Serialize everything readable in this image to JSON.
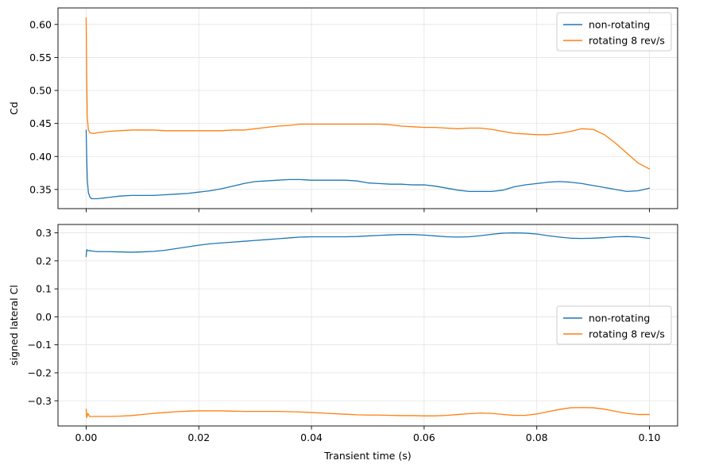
{
  "chart_data": [
    {
      "type": "line",
      "title": "",
      "xlabel": "",
      "ylabel": "Cd",
      "xlim": [
        -0.005,
        0.105
      ],
      "ylim": [
        0.321,
        0.625
      ],
      "xticks": [
        0.0,
        0.02,
        0.04,
        0.06,
        0.08,
        0.1
      ],
      "xtick_labels": [],
      "yticks": [
        0.35,
        0.4,
        0.45,
        0.5,
        0.55,
        0.6
      ],
      "ytick_labels": [
        "0.35",
        "0.40",
        "0.45",
        "0.50",
        "0.55",
        "0.60"
      ],
      "grid": true,
      "legend_position": "upper right",
      "colors": {
        "non-rotating": "#1f77b4",
        "rotating 8 rev/s": "#ff7f0e"
      },
      "series": [
        {
          "name": "non-rotating",
          "x": [
            0.0,
            0.0001,
            0.0002,
            0.0004,
            0.0007,
            0.001,
            0.0015,
            0.002,
            0.003,
            0.004,
            0.006,
            0.008,
            0.01,
            0.012,
            0.014,
            0.016,
            0.018,
            0.02,
            0.022,
            0.024,
            0.026,
            0.028,
            0.03,
            0.032,
            0.034,
            0.036,
            0.038,
            0.04,
            0.042,
            0.044,
            0.046,
            0.048,
            0.05,
            0.052,
            0.054,
            0.056,
            0.058,
            0.06,
            0.062,
            0.064,
            0.066,
            0.068,
            0.07,
            0.072,
            0.074,
            0.076,
            0.078,
            0.08,
            0.082,
            0.084,
            0.086,
            0.088,
            0.09,
            0.092,
            0.094,
            0.096,
            0.098,
            0.1
          ],
          "y": [
            0.44,
            0.4,
            0.365,
            0.345,
            0.338,
            0.336,
            0.336,
            0.336,
            0.337,
            0.338,
            0.34,
            0.341,
            0.341,
            0.341,
            0.342,
            0.343,
            0.344,
            0.346,
            0.348,
            0.351,
            0.355,
            0.359,
            0.362,
            0.363,
            0.364,
            0.365,
            0.365,
            0.364,
            0.364,
            0.364,
            0.364,
            0.363,
            0.36,
            0.359,
            0.358,
            0.358,
            0.357,
            0.357,
            0.355,
            0.352,
            0.349,
            0.347,
            0.347,
            0.347,
            0.349,
            0.354,
            0.357,
            0.359,
            0.361,
            0.362,
            0.361,
            0.359,
            0.356,
            0.353,
            0.35,
            0.347,
            0.348,
            0.352
          ]
        },
        {
          "name": "rotating 8 rev/s",
          "x": [
            0.0,
            0.0001,
            0.0002,
            0.0004,
            0.0007,
            0.001,
            0.0015,
            0.002,
            0.003,
            0.004,
            0.006,
            0.008,
            0.01,
            0.012,
            0.014,
            0.016,
            0.018,
            0.02,
            0.022,
            0.024,
            0.026,
            0.028,
            0.03,
            0.032,
            0.034,
            0.036,
            0.038,
            0.04,
            0.042,
            0.044,
            0.046,
            0.048,
            0.05,
            0.052,
            0.054,
            0.056,
            0.058,
            0.06,
            0.062,
            0.064,
            0.066,
            0.068,
            0.07,
            0.072,
            0.074,
            0.076,
            0.078,
            0.08,
            0.082,
            0.084,
            0.086,
            0.088,
            0.09,
            0.092,
            0.094,
            0.096,
            0.098,
            0.1
          ],
          "y": [
            0.61,
            0.52,
            0.46,
            0.44,
            0.436,
            0.435,
            0.435,
            0.436,
            0.437,
            0.438,
            0.439,
            0.44,
            0.44,
            0.44,
            0.439,
            0.439,
            0.439,
            0.439,
            0.439,
            0.439,
            0.44,
            0.44,
            0.442,
            0.444,
            0.446,
            0.447,
            0.449,
            0.449,
            0.449,
            0.449,
            0.449,
            0.449,
            0.449,
            0.449,
            0.448,
            0.446,
            0.445,
            0.444,
            0.444,
            0.443,
            0.442,
            0.443,
            0.443,
            0.441,
            0.438,
            0.435,
            0.434,
            0.433,
            0.433,
            0.435,
            0.438,
            0.442,
            0.441,
            0.433,
            0.42,
            0.405,
            0.39,
            0.381
          ]
        }
      ],
      "legend": [
        "non-rotating",
        "rotating 8 rev/s"
      ]
    },
    {
      "type": "line",
      "title": "",
      "xlabel": "Transient time (s)",
      "ylabel": "signed lateral Cl",
      "xlim": [
        -0.005,
        0.105
      ],
      "ylim": [
        -0.39,
        0.33
      ],
      "xticks": [
        0.0,
        0.02,
        0.04,
        0.06,
        0.08,
        0.1
      ],
      "xtick_labels": [
        "0.00",
        "0.02",
        "0.04",
        "0.06",
        "0.08",
        "0.10"
      ],
      "yticks": [
        -0.3,
        -0.2,
        -0.1,
        0.0,
        0.1,
        0.2,
        0.3
      ],
      "ytick_labels": [
        "−0.3",
        "−0.2",
        "−0.1",
        "0.0",
        "0.1",
        "0.2",
        "0.3"
      ],
      "grid": true,
      "legend_position": "center right",
      "colors": {
        "non-rotating": "#1f77b4",
        "rotating 8 rev/s": "#ff7f0e"
      },
      "series": [
        {
          "name": "non-rotating",
          "x": [
            0.0,
            0.0001,
            0.0003,
            0.0006,
            0.001,
            0.002,
            0.004,
            0.006,
            0.008,
            0.01,
            0.012,
            0.014,
            0.016,
            0.018,
            0.02,
            0.022,
            0.024,
            0.026,
            0.028,
            0.03,
            0.032,
            0.034,
            0.036,
            0.038,
            0.04,
            0.042,
            0.044,
            0.046,
            0.048,
            0.05,
            0.052,
            0.054,
            0.056,
            0.058,
            0.06,
            0.062,
            0.064,
            0.066,
            0.068,
            0.07,
            0.072,
            0.074,
            0.076,
            0.078,
            0.08,
            0.082,
            0.084,
            0.086,
            0.088,
            0.09,
            0.092,
            0.094,
            0.096,
            0.098,
            0.1
          ],
          "y": [
            0.215,
            0.24,
            0.236,
            0.237,
            0.235,
            0.233,
            0.233,
            0.232,
            0.231,
            0.232,
            0.234,
            0.238,
            0.244,
            0.25,
            0.256,
            0.261,
            0.264,
            0.267,
            0.27,
            0.273,
            0.276,
            0.279,
            0.282,
            0.285,
            0.286,
            0.286,
            0.286,
            0.286,
            0.287,
            0.289,
            0.291,
            0.293,
            0.294,
            0.294,
            0.292,
            0.289,
            0.286,
            0.285,
            0.286,
            0.29,
            0.295,
            0.299,
            0.3,
            0.299,
            0.296,
            0.29,
            0.285,
            0.281,
            0.28,
            0.281,
            0.283,
            0.286,
            0.287,
            0.285,
            0.28
          ]
        },
        {
          "name": "rotating 8 rev/s",
          "x": [
            0.0,
            0.0001,
            0.0003,
            0.0006,
            0.001,
            0.002,
            0.004,
            0.006,
            0.008,
            0.01,
            0.012,
            0.014,
            0.016,
            0.018,
            0.02,
            0.022,
            0.024,
            0.026,
            0.028,
            0.03,
            0.032,
            0.034,
            0.036,
            0.038,
            0.04,
            0.042,
            0.044,
            0.046,
            0.048,
            0.05,
            0.052,
            0.054,
            0.056,
            0.058,
            0.06,
            0.062,
            0.064,
            0.066,
            0.068,
            0.07,
            0.072,
            0.074,
            0.076,
            0.078,
            0.08,
            0.082,
            0.084,
            0.086,
            0.088,
            0.09,
            0.092,
            0.094,
            0.096,
            0.098,
            0.1
          ],
          "y": [
            -0.33,
            -0.36,
            -0.345,
            -0.356,
            -0.356,
            -0.356,
            -0.356,
            -0.355,
            -0.353,
            -0.349,
            -0.345,
            -0.342,
            -0.339,
            -0.337,
            -0.336,
            -0.336,
            -0.336,
            -0.337,
            -0.338,
            -0.338,
            -0.338,
            -0.338,
            -0.339,
            -0.34,
            -0.342,
            -0.344,
            -0.346,
            -0.348,
            -0.35,
            -0.351,
            -0.351,
            -0.352,
            -0.353,
            -0.353,
            -0.354,
            -0.354,
            -0.352,
            -0.349,
            -0.346,
            -0.344,
            -0.345,
            -0.349,
            -0.352,
            -0.352,
            -0.347,
            -0.339,
            -0.331,
            -0.325,
            -0.324,
            -0.325,
            -0.33,
            -0.338,
            -0.345,
            -0.349,
            -0.349
          ]
        }
      ],
      "legend": [
        "non-rotating",
        "rotating 8 rev/s"
      ]
    }
  ]
}
